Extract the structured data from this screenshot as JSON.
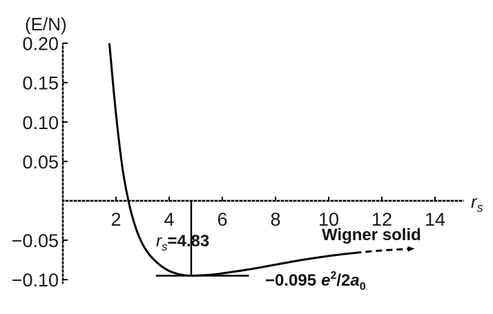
{
  "chart_data": {
    "type": "line",
    "ylabel": "(E/N)",
    "xlabel_var": "r",
    "xlabel_sub": "s",
    "xlim": [
      0,
      15
    ],
    "ylim": [
      -0.105,
      0.2
    ],
    "x_ticks": [
      2,
      4,
      6,
      8,
      10,
      12,
      14
    ],
    "x_tick_labels": [
      "2",
      "4",
      "6",
      "8",
      "10",
      "12",
      "14"
    ],
    "y_ticks": [
      0.2,
      0.15,
      0.1,
      0.05,
      -0.05,
      -0.1
    ],
    "y_tick_labels": [
      "0.20",
      "0.15",
      "0.10",
      "0.05",
      "−0.05",
      "−0.10"
    ],
    "series": [
      {
        "style": "solid",
        "x": [
          1.75,
          2.0,
          2.25,
          2.5,
          2.75,
          3.0,
          3.25,
          3.5,
          3.75,
          4.0,
          4.25,
          4.5,
          4.83,
          5.5,
          6.0,
          7.0,
          8.0,
          9.0,
          10.0,
          11.0
        ],
        "y": [
          0.2,
          0.11,
          0.04,
          -0.005,
          -0.035,
          -0.055,
          -0.068,
          -0.077,
          -0.084,
          -0.089,
          -0.092,
          -0.094,
          -0.095,
          -0.094,
          -0.092,
          -0.087,
          -0.081,
          -0.075,
          -0.07,
          -0.066
        ]
      },
      {
        "style": "dashed",
        "x": [
          11.0,
          12.0,
          13.0
        ],
        "y": [
          -0.066,
          -0.063,
          -0.061
        ]
      }
    ],
    "annotations": {
      "rs_var": "r",
      "rs_sub": "s",
      "rs_value": "=4.83",
      "min_x": 4.83,
      "min_y": -0.095,
      "energy_value": "−0.095",
      "energy_e": "e",
      "energy_sup": "2",
      "energy_slash": "/2",
      "energy_a": "a",
      "energy_sub": "0",
      "wigner_label": "Wigner solid"
    }
  }
}
